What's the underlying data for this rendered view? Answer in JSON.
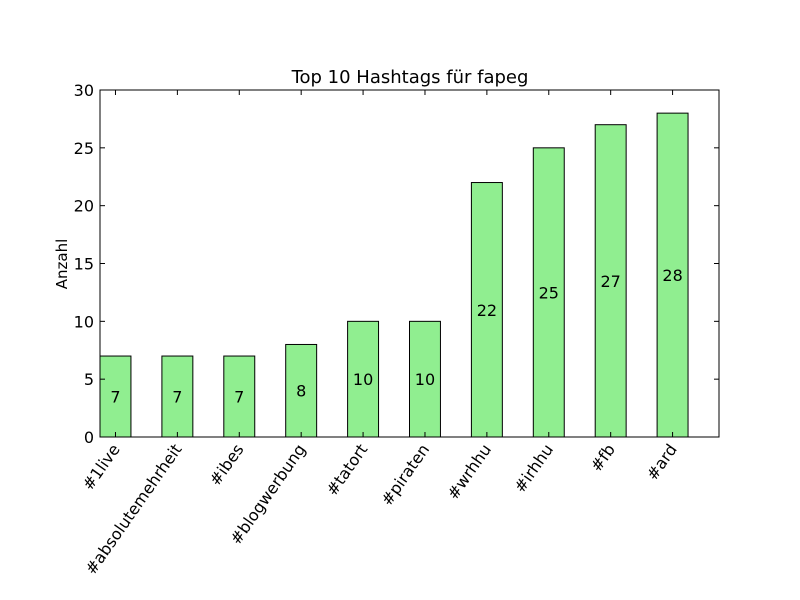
{
  "chart_data": {
    "type": "bar",
    "title": "Top 10 Hashtags für fapeg",
    "xlabel": "",
    "ylabel": "Anzahl",
    "ylim": [
      0,
      30
    ],
    "yticks": [
      0,
      5,
      10,
      15,
      20,
      25,
      30
    ],
    "categories": [
      "#1live",
      "#absolutemehrheit",
      "#ibes",
      "#blogwerbung",
      "#tatort",
      "#piraten",
      "#wrhhu",
      "#irhhu",
      "#fb",
      "#ard"
    ],
    "values": [
      7,
      7,
      7,
      8,
      10,
      10,
      22,
      25,
      27,
      28
    ],
    "bar_color": "#90ee90",
    "edge_color": "#000000",
    "grid": false,
    "legend": "none"
  }
}
